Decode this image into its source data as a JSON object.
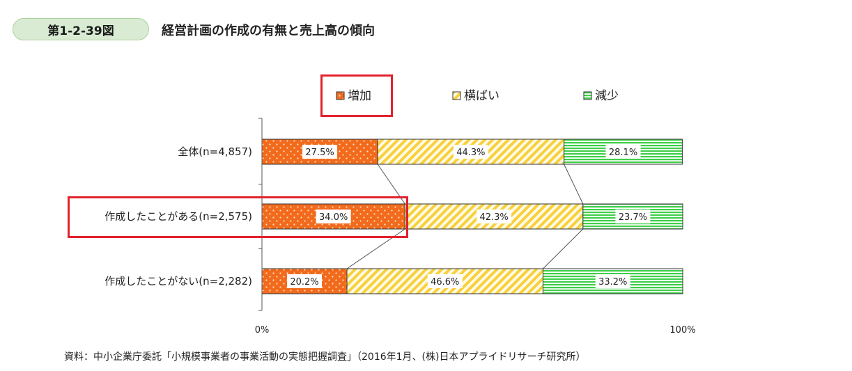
{
  "figure": {
    "number": "第1-2-39図",
    "title": "経営計画の作成の有無と売上高の傾向",
    "source": "資料：中小企業庁委託「小規模事業者の事業活動の実態把握調査」（2016年1月、(株)日本アプライドリサーチ研究所）"
  },
  "chart_data": {
    "type": "bar",
    "orientation": "horizontal",
    "stacked": true,
    "percent": true,
    "categories": [
      "全体(n=4,857)",
      "作成したことがある(n=2,575)",
      "作成したことがない(n=2,282)"
    ],
    "series": [
      {
        "name": "増加",
        "values": [
          27.5,
          34.0,
          20.2
        ],
        "labels": [
          "27.5%",
          "34.0%",
          "20.2%"
        ],
        "color": "#f26b1d"
      },
      {
        "name": "横ばい",
        "values": [
          44.3,
          42.3,
          46.6
        ],
        "labels": [
          "44.3%",
          "42.3%",
          "46.6%"
        ],
        "color": "#f7d03c"
      },
      {
        "name": "減少",
        "values": [
          28.1,
          23.7,
          33.2
        ],
        "labels": [
          "28.1%",
          "23.7%",
          "33.2%"
        ],
        "color": "#3fcf4a"
      }
    ],
    "xlim": [
      0,
      100
    ],
    "x_ticks": [
      "0%",
      "100%"
    ],
    "legend_position": "top",
    "grid": false
  },
  "highlight_color": "#e3212c"
}
